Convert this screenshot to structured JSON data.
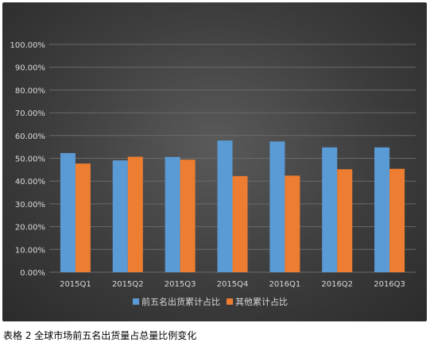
{
  "caption": "表格 2 全球市场前五名出货量占总量比例变化",
  "colors": {
    "series1": "#5b9bd5",
    "series2": "#ed7d31",
    "text": "#d9d9d9",
    "grid": "#6a6a6a"
  },
  "chart_data": {
    "type": "bar",
    "title": "",
    "xlabel": "",
    "ylabel": "",
    "categories": [
      "2015Q1",
      "2015Q2",
      "2015Q3",
      "2015Q4",
      "2016Q1",
      "2016Q2",
      "2016Q3"
    ],
    "series": [
      {
        "name": "前五名出货累计占比",
        "values": [
          52.3,
          49.1,
          50.6,
          57.8,
          57.4,
          54.8,
          54.8
        ]
      },
      {
        "name": "其他累计占比",
        "values": [
          47.7,
          50.7,
          49.4,
          42.2,
          42.4,
          45.2,
          45.4
        ]
      }
    ],
    "ylim": [
      0,
      100
    ],
    "yticks": [
      "0.00%",
      "10.00%",
      "20.00%",
      "30.00%",
      "40.00%",
      "50.00%",
      "60.00%",
      "70.00%",
      "80.00%",
      "90.00%",
      "100.00%"
    ],
    "grid": true,
    "legend": "bottom"
  }
}
